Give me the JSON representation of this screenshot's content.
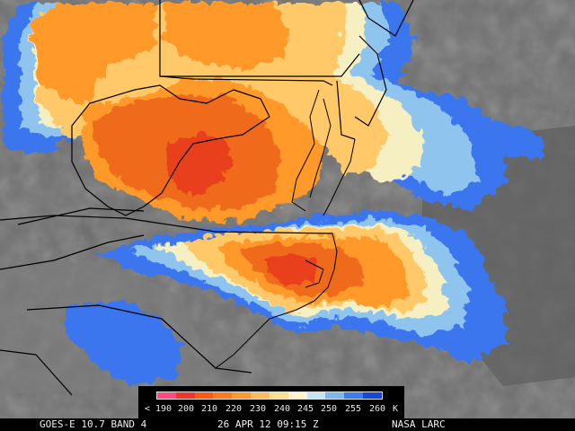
{
  "colors": {
    "background_gray": "#6f6f6f",
    "cold_blue": "#2f6ef0",
    "light_blue": "#8ec8f0",
    "cream": "#f6f0c0",
    "yellow": "#ffc868",
    "orange": "#ff9a2a",
    "deep_orange": "#f06018",
    "red": "#e83a20",
    "border_black": "#000000"
  },
  "colorbar": {
    "unit": "K",
    "labels": [
      "< 190",
      "200",
      "210",
      "220",
      "230",
      "240",
      "245",
      "250",
      "255",
      "260"
    ],
    "colors": [
      "#ff4a80",
      "#f2352a",
      "#ff5a10",
      "#ff7a1a",
      "#ff9a2a",
      "#ffbb55",
      "#ffe08a",
      "#fff5c8",
      "#c4e4f4",
      "#7ab8ee",
      "#3a7ef2",
      "#1448d8"
    ]
  },
  "caption": {
    "satellite": "GOES-E 10.7 BAND 4",
    "datetime": "26 APR 12 09:15 Z",
    "source": "NASA LARC"
  }
}
